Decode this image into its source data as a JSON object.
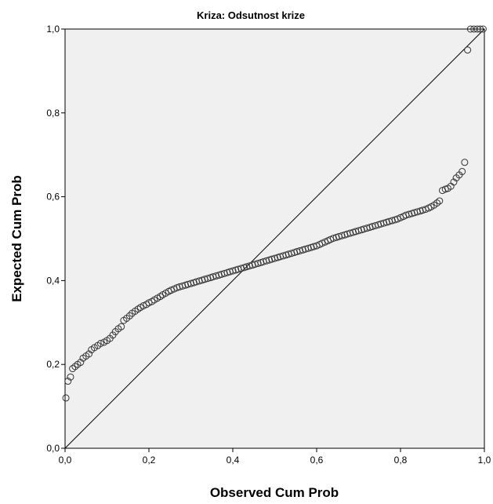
{
  "chart_data": {
    "type": "scatter",
    "title": "Kriza: Odsutnost krize",
    "xlabel": "Observed Cum Prob",
    "ylabel": "Expected Cum Prob",
    "xlim": [
      0,
      1
    ],
    "ylim": [
      0,
      1
    ],
    "x_ticks": [
      "0,0",
      "0,2",
      "0,4",
      "0,6",
      "0,8",
      "1,0"
    ],
    "y_ticks": [
      "0,0",
      "0,2",
      "0,4",
      "0,6",
      "0,8",
      "1,0"
    ],
    "grid": false,
    "reference_line": {
      "from": [
        0,
        0
      ],
      "to": [
        1,
        1
      ]
    },
    "colors": {
      "plot_background": "#f0f0f0",
      "marker": "#333333",
      "line": "#000000"
    },
    "series": [
      {
        "marker": "open-circle",
        "points": [
          [
            0.002,
            0.12
          ],
          [
            0.007,
            0.16
          ],
          [
            0.013,
            0.17
          ],
          [
            0.018,
            0.19
          ],
          [
            0.024,
            0.195
          ],
          [
            0.03,
            0.2
          ],
          [
            0.037,
            0.205
          ],
          [
            0.043,
            0.215
          ],
          [
            0.05,
            0.22
          ],
          [
            0.057,
            0.225
          ],
          [
            0.063,
            0.235
          ],
          [
            0.07,
            0.24
          ],
          [
            0.078,
            0.245
          ],
          [
            0.085,
            0.25
          ],
          [
            0.093,
            0.253
          ],
          [
            0.1,
            0.257
          ],
          [
            0.107,
            0.262
          ],
          [
            0.114,
            0.27
          ],
          [
            0.12,
            0.278
          ],
          [
            0.127,
            0.285
          ],
          [
            0.134,
            0.29
          ],
          [
            0.14,
            0.305
          ],
          [
            0.147,
            0.31
          ],
          [
            0.154,
            0.316
          ],
          [
            0.16,
            0.322
          ],
          [
            0.167,
            0.327
          ],
          [
            0.174,
            0.332
          ],
          [
            0.18,
            0.336
          ],
          [
            0.187,
            0.34
          ],
          [
            0.194,
            0.343
          ],
          [
            0.2,
            0.347
          ],
          [
            0.207,
            0.35
          ],
          [
            0.213,
            0.354
          ],
          [
            0.22,
            0.358
          ],
          [
            0.227,
            0.362
          ],
          [
            0.233,
            0.366
          ],
          [
            0.24,
            0.37
          ],
          [
            0.247,
            0.374
          ],
          [
            0.253,
            0.377
          ],
          [
            0.26,
            0.38
          ],
          [
            0.267,
            0.383
          ],
          [
            0.273,
            0.385
          ],
          [
            0.28,
            0.387
          ],
          [
            0.287,
            0.389
          ],
          [
            0.293,
            0.391
          ],
          [
            0.3,
            0.393
          ],
          [
            0.307,
            0.395
          ],
          [
            0.313,
            0.397
          ],
          [
            0.32,
            0.399
          ],
          [
            0.327,
            0.401
          ],
          [
            0.333,
            0.403
          ],
          [
            0.34,
            0.405
          ],
          [
            0.347,
            0.407
          ],
          [
            0.353,
            0.409
          ],
          [
            0.36,
            0.411
          ],
          [
            0.367,
            0.413
          ],
          [
            0.373,
            0.415
          ],
          [
            0.38,
            0.417
          ],
          [
            0.387,
            0.419
          ],
          [
            0.393,
            0.421
          ],
          [
            0.4,
            0.423
          ],
          [
            0.407,
            0.425
          ],
          [
            0.413,
            0.427
          ],
          [
            0.42,
            0.429
          ],
          [
            0.427,
            0.431
          ],
          [
            0.433,
            0.433
          ],
          [
            0.44,
            0.435
          ],
          [
            0.447,
            0.437
          ],
          [
            0.453,
            0.439
          ],
          [
            0.46,
            0.441
          ],
          [
            0.467,
            0.443
          ],
          [
            0.473,
            0.445
          ],
          [
            0.48,
            0.447
          ],
          [
            0.487,
            0.449
          ],
          [
            0.493,
            0.451
          ],
          [
            0.5,
            0.453
          ],
          [
            0.507,
            0.455
          ],
          [
            0.513,
            0.457
          ],
          [
            0.52,
            0.459
          ],
          [
            0.527,
            0.461
          ],
          [
            0.533,
            0.463
          ],
          [
            0.54,
            0.465
          ],
          [
            0.547,
            0.467
          ],
          [
            0.553,
            0.469
          ],
          [
            0.56,
            0.471
          ],
          [
            0.567,
            0.473
          ],
          [
            0.573,
            0.475
          ],
          [
            0.58,
            0.477
          ],
          [
            0.587,
            0.479
          ],
          [
            0.593,
            0.481
          ],
          [
            0.6,
            0.483
          ],
          [
            0.607,
            0.486
          ],
          [
            0.613,
            0.489
          ],
          [
            0.62,
            0.492
          ],
          [
            0.627,
            0.495
          ],
          [
            0.633,
            0.498
          ],
          [
            0.64,
            0.501
          ],
          [
            0.647,
            0.503
          ],
          [
            0.653,
            0.505
          ],
          [
            0.66,
            0.507
          ],
          [
            0.667,
            0.509
          ],
          [
            0.673,
            0.511
          ],
          [
            0.68,
            0.513
          ],
          [
            0.687,
            0.515
          ],
          [
            0.693,
            0.517
          ],
          [
            0.7,
            0.519
          ],
          [
            0.707,
            0.521
          ],
          [
            0.713,
            0.523
          ],
          [
            0.72,
            0.525
          ],
          [
            0.727,
            0.527
          ],
          [
            0.733,
            0.529
          ],
          [
            0.74,
            0.531
          ],
          [
            0.747,
            0.533
          ],
          [
            0.753,
            0.535
          ],
          [
            0.76,
            0.537
          ],
          [
            0.767,
            0.539
          ],
          [
            0.773,
            0.541
          ],
          [
            0.78,
            0.543
          ],
          [
            0.787,
            0.545
          ],
          [
            0.793,
            0.547
          ],
          [
            0.8,
            0.55
          ],
          [
            0.807,
            0.553
          ],
          [
            0.813,
            0.556
          ],
          [
            0.82,
            0.558
          ],
          [
            0.827,
            0.56
          ],
          [
            0.833,
            0.562
          ],
          [
            0.84,
            0.564
          ],
          [
            0.847,
            0.566
          ],
          [
            0.853,
            0.568
          ],
          [
            0.86,
            0.57
          ],
          [
            0.867,
            0.573
          ],
          [
            0.873,
            0.576
          ],
          [
            0.88,
            0.58
          ],
          [
            0.887,
            0.585
          ],
          [
            0.893,
            0.59
          ],
          [
            0.9,
            0.615
          ],
          [
            0.907,
            0.618
          ],
          [
            0.913,
            0.62
          ],
          [
            0.92,
            0.625
          ],
          [
            0.927,
            0.635
          ],
          [
            0.933,
            0.645
          ],
          [
            0.94,
            0.652
          ],
          [
            0.947,
            0.66
          ],
          [
            0.953,
            0.682
          ],
          [
            0.96,
            0.95
          ],
          [
            0.967,
            1.0
          ],
          [
            0.975,
            1.0
          ],
          [
            0.983,
            1.0
          ],
          [
            0.99,
            1.0
          ],
          [
            0.997,
            1.0
          ]
        ]
      }
    ]
  }
}
